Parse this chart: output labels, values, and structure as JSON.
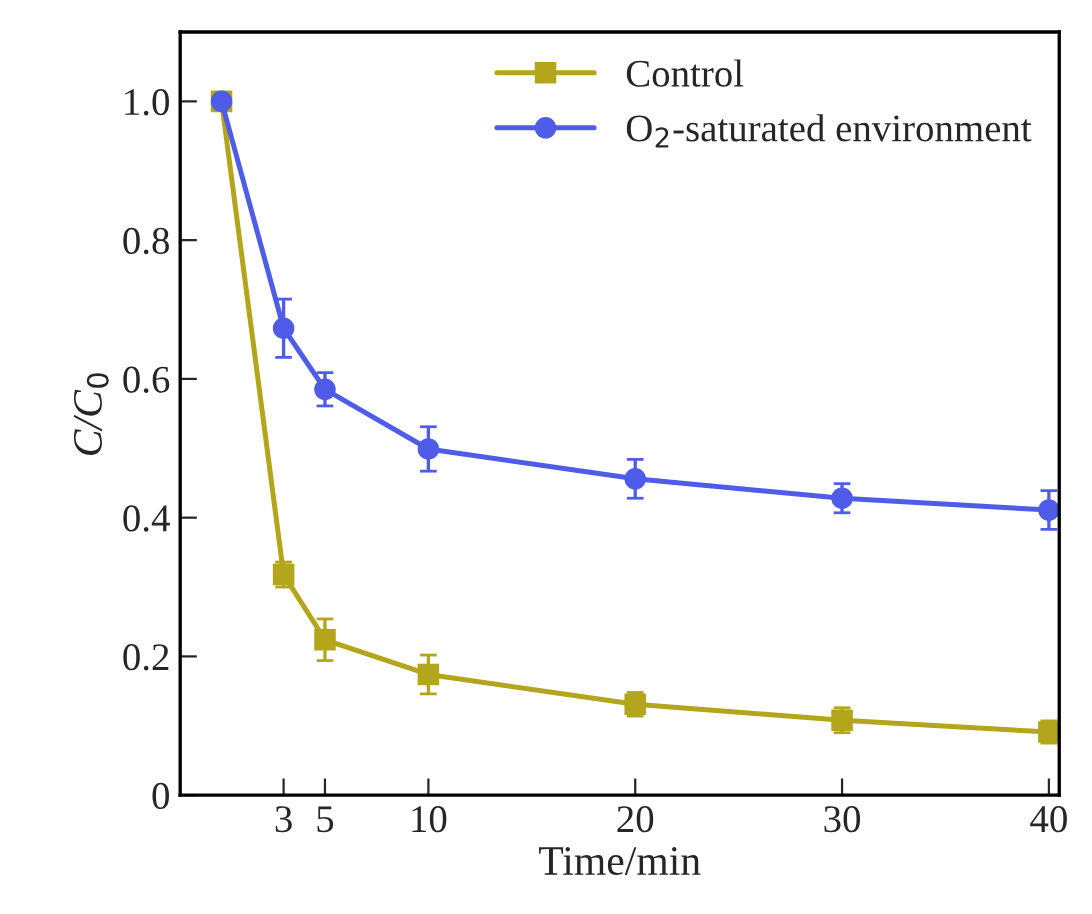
{
  "chart_data": {
    "type": "line",
    "xlabel": "Time/min",
    "ylabel": "C/C$_{0}$",
    "x": [
      0,
      3,
      5,
      10,
      20,
      30,
      40
    ],
    "series": [
      {
        "name": "Control",
        "color": "#b3a51c",
        "marker": "square",
        "values": [
          1.0,
          0.318,
          0.224,
          0.174,
          0.131,
          0.108,
          0.091
        ],
        "errors": [
          null,
          0.018,
          0.03,
          0.028,
          0.017,
          0.018,
          0.016
        ]
      },
      {
        "name": "O$_{2}$-saturated environment",
        "color": "#4f5ce8",
        "marker": "circle",
        "values": [
          1.0,
          0.673,
          0.585,
          0.499,
          0.456,
          0.428,
          0.411
        ],
        "errors": [
          null,
          0.042,
          0.024,
          0.032,
          0.028,
          0.021,
          0.028
        ]
      }
    ],
    "xlim": [
      -2,
      40.5
    ],
    "xticks": [
      3,
      5,
      10,
      20,
      30,
      40
    ],
    "ylim": [
      0,
      1.1
    ],
    "yticks": [
      {
        "value": 0,
        "label": "0"
      },
      {
        "value": 0.2,
        "label": "0.2"
      },
      {
        "value": 0.4,
        "label": "0.4"
      },
      {
        "value": 0.6,
        "label": "0.6"
      },
      {
        "value": 0.8,
        "label": "0.8"
      },
      {
        "value": 1.0,
        "label": "1.0"
      }
    ],
    "grid": false,
    "legend": "top right",
    "line_style": "solid"
  }
}
